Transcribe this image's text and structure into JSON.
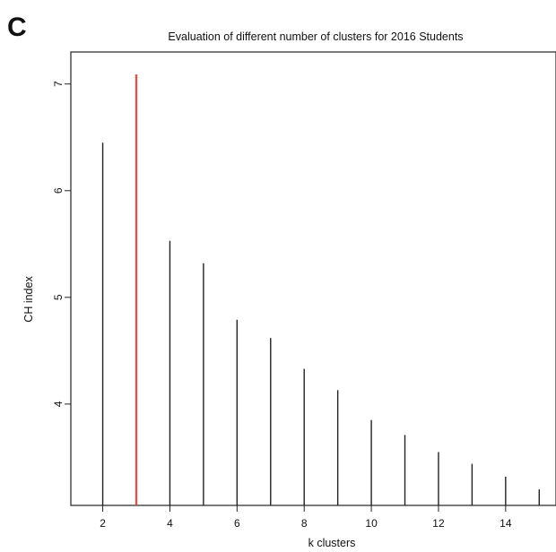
{
  "panel_label": "C",
  "chart_data": {
    "type": "bar",
    "title": "Evaluation of different number of clusters for 2016 Students",
    "xlabel": "k clusters",
    "ylabel": "CH index",
    "x": [
      2,
      3,
      4,
      5,
      6,
      7,
      8,
      9,
      10,
      11,
      12,
      13,
      14,
      15
    ],
    "values": [
      6.45,
      7.09,
      5.53,
      5.32,
      4.79,
      4.62,
      4.33,
      4.13,
      3.85,
      3.71,
      3.55,
      3.44,
      3.32,
      3.2
    ],
    "highlight_x": 3,
    "highlight_color": "#d9534f",
    "bar_color": "#222222",
    "x_ticks": [
      2,
      4,
      6,
      8,
      10,
      12,
      14
    ],
    "y_ticks": [
      4,
      5,
      6,
      7
    ],
    "xlim": [
      1.05,
      15.5
    ],
    "ylim": [
      3.05,
      7.3
    ],
    "grid": false,
    "legend": "none"
  }
}
